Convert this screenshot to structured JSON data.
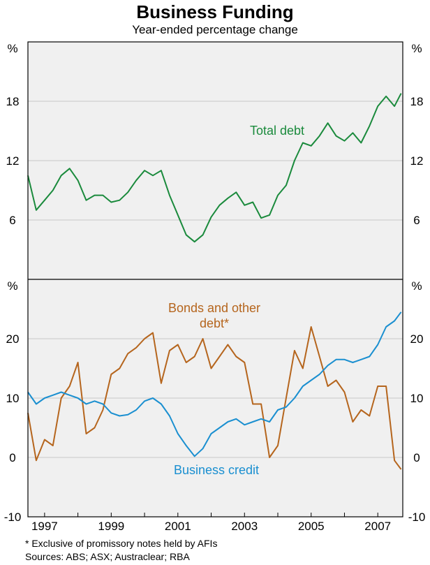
{
  "title": "Business Funding",
  "subtitle": "Year-ended percentage change",
  "footnote": "*   Exclusive of promissory notes held by AFIs",
  "sources": "Sources: ABS; ASX; Austraclear; RBA",
  "colors": {
    "total_debt": "#1a8a3c",
    "bonds": "#b5651d",
    "business_credit": "#1a8fd0",
    "panel_bg": "#f0f0f0"
  },
  "chart_data": [
    {
      "type": "line",
      "panel": "top",
      "ylabel": "%",
      "ylabel_right": "%",
      "ylim": [
        0,
        24
      ],
      "yticks": [
        6,
        12,
        18
      ],
      "xlim": [
        1996.5,
        2007.75
      ],
      "series": [
        {
          "name": "Total debt",
          "x": [
            1996.5,
            1996.75,
            1997,
            1997.25,
            1997.5,
            1997.75,
            1998,
            1998.25,
            1998.5,
            1998.75,
            1999,
            1999.25,
            1999.5,
            1999.75,
            2000,
            2000.25,
            2000.5,
            2000.75,
            2001,
            2001.25,
            2001.5,
            2001.75,
            2002,
            2002.25,
            2002.5,
            2002.75,
            2003,
            2003.25,
            2003.5,
            2003.75,
            2004,
            2004.25,
            2004.5,
            2004.75,
            2005,
            2005.25,
            2005.5,
            2005.75,
            2006,
            2006.25,
            2006.5,
            2006.75,
            2007,
            2007.25,
            2007.5,
            2007.7
          ],
          "y": [
            10.5,
            7,
            8,
            9,
            10.5,
            11.2,
            10,
            8,
            8.5,
            8.5,
            7.8,
            8,
            8.8,
            10,
            11,
            10.5,
            11,
            8.5,
            6.5,
            4.5,
            3.8,
            4.5,
            6.3,
            7.5,
            8.2,
            8.8,
            7.5,
            7.8,
            6.2,
            6.5,
            8.5,
            9.5,
            12,
            13.8,
            13.5,
            14.5,
            15.8,
            14.5,
            14,
            14.8,
            13.8,
            15.5,
            17.5,
            18.5,
            17.5,
            18.8
          ]
        }
      ]
    },
    {
      "type": "line",
      "panel": "bottom",
      "ylabel": "%",
      "ylabel_right": "%",
      "ylim": [
        -10,
        30
      ],
      "yticks": [
        -10,
        0,
        10,
        20
      ],
      "xlim": [
        1996.5,
        2007.75
      ],
      "xtick_labels": [
        "1997",
        "1999",
        "2001",
        "2003",
        "2005",
        "2007"
      ],
      "series": [
        {
          "name": "Bonds and other debt*",
          "x": [
            1996.5,
            1996.75,
            1997,
            1997.25,
            1997.5,
            1997.75,
            1998,
            1998.25,
            1998.5,
            1998.75,
            1999,
            1999.25,
            1999.5,
            1999.75,
            2000,
            2000.25,
            2000.5,
            2000.75,
            2001,
            2001.25,
            2001.5,
            2001.75,
            2002,
            2002.25,
            2002.5,
            2002.75,
            2003,
            2003.25,
            2003.5,
            2003.75,
            2004,
            2004.25,
            2004.5,
            2004.75,
            2005,
            2005.25,
            2005.5,
            2005.75,
            2006,
            2006.25,
            2006.5,
            2006.75,
            2007,
            2007.25,
            2007.5,
            2007.7
          ],
          "y": [
            7.5,
            -0.5,
            3,
            2,
            10,
            12,
            16,
            4,
            5,
            8,
            14,
            15,
            17.5,
            18.5,
            20,
            21,
            12.5,
            18,
            19,
            16,
            17,
            20,
            15,
            17,
            19,
            17,
            16,
            9,
            9,
            0,
            2,
            10,
            18,
            15,
            22,
            17,
            12,
            13,
            11,
            6,
            8,
            7,
            12,
            12,
            -0.5,
            -2
          ]
        },
        {
          "name": "Business credit",
          "x": [
            1996.5,
            1996.75,
            1997,
            1997.25,
            1997.5,
            1997.75,
            1998,
            1998.25,
            1998.5,
            1998.75,
            1999,
            1999.25,
            1999.5,
            1999.75,
            2000,
            2000.25,
            2000.5,
            2000.75,
            2001,
            2001.25,
            2001.5,
            2001.75,
            2002,
            2002.25,
            2002.5,
            2002.75,
            2003,
            2003.25,
            2003.5,
            2003.75,
            2004,
            2004.25,
            2004.5,
            2004.75,
            2005,
            2005.25,
            2005.5,
            2005.75,
            2006,
            2006.25,
            2006.5,
            2006.75,
            2007,
            2007.25,
            2007.5,
            2007.7
          ],
          "y": [
            11,
            9,
            10,
            10.5,
            11,
            10.5,
            10,
            9,
            9.5,
            9,
            7.5,
            7,
            7.2,
            8,
            9.5,
            10,
            9,
            7,
            4,
            2,
            0.2,
            1.5,
            4,
            5,
            6,
            6.5,
            5.5,
            6,
            6.5,
            6,
            8,
            8.5,
            10,
            12,
            13,
            14,
            15.5,
            16.5,
            16.5,
            16,
            16.5,
            17,
            19,
            22,
            23,
            24.5
          ]
        }
      ]
    }
  ],
  "annotations": {
    "total_debt": "Total debt",
    "bonds_line1": "Bonds and other",
    "bonds_line2": "debt*",
    "business_credit": "Business credit"
  }
}
